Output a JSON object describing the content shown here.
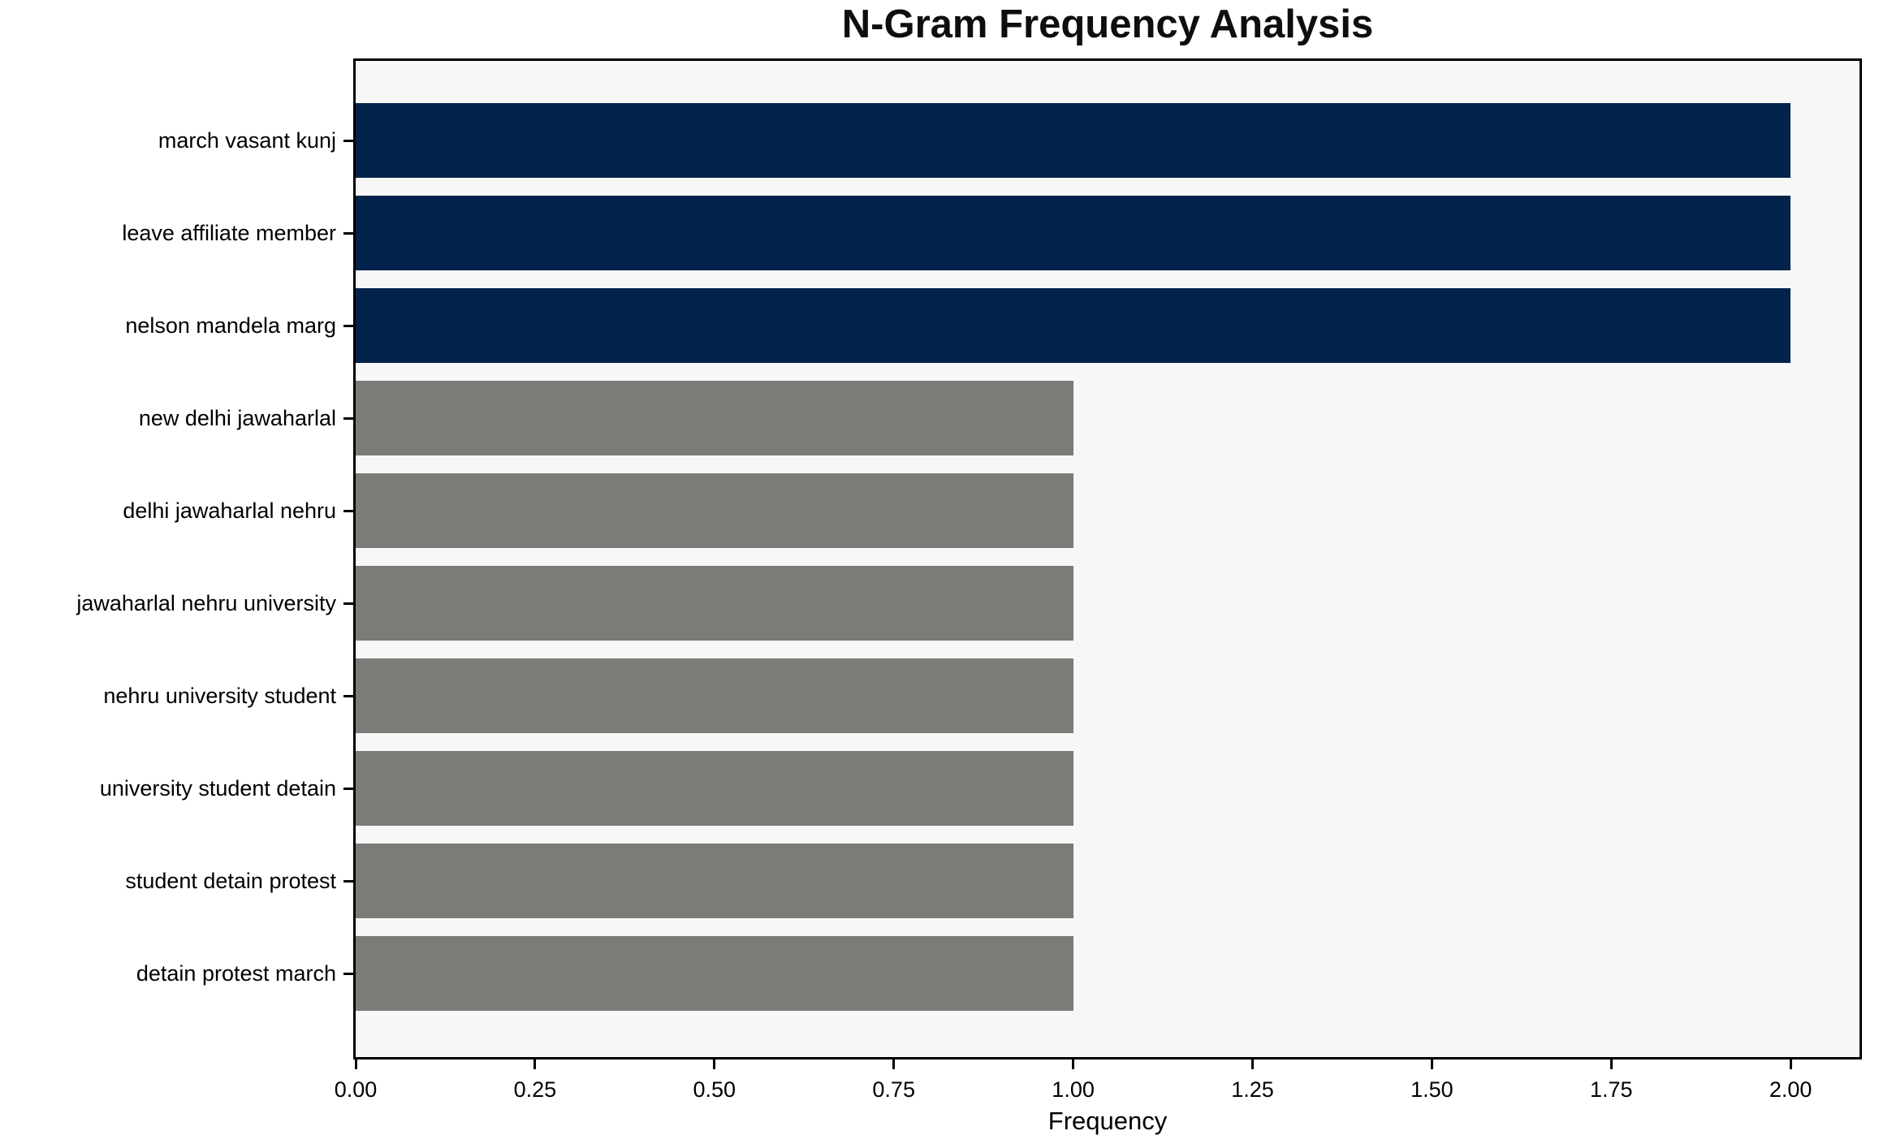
{
  "title": "N-Gram Frequency Analysis",
  "chart_data": {
    "type": "bar",
    "orientation": "horizontal",
    "title": "N-Gram Frequency Analysis",
    "xlabel": "Frequency",
    "ylabel": "",
    "categories": [
      "march vasant kunj",
      "leave affiliate member",
      "nelson mandela marg",
      "new delhi jawaharlal",
      "delhi jawaharlal nehru",
      "jawaharlal nehru university",
      "nehru university student",
      "university student detain",
      "student detain protest",
      "detain protest march"
    ],
    "values": [
      2,
      2,
      2,
      1,
      1,
      1,
      1,
      1,
      1,
      1
    ],
    "bar_colors": [
      "#02234c",
      "#02234c",
      "#02234c",
      "#7b7b77",
      "#7b7b77",
      "#7b7b77",
      "#7b7b77",
      "#7b7b77",
      "#7b7b77",
      "#7b7b77"
    ],
    "xticks": [
      0.0,
      0.25,
      0.5,
      0.75,
      1.0,
      1.25,
      1.5,
      1.75,
      2.0
    ],
    "xtick_labels": [
      "0.00",
      "0.25",
      "0.50",
      "0.75",
      "1.00",
      "1.25",
      "1.50",
      "1.75",
      "2.00"
    ],
    "xlim": [
      0,
      2.096
    ],
    "grid": false,
    "legend": null,
    "colors": {
      "highlight_bar": "#02234c",
      "default_bar": "#7b7b77",
      "plot_background": "#f7f7f7",
      "figure_background": "#ffffff",
      "spine": "#000000",
      "text": "#000000"
    }
  }
}
